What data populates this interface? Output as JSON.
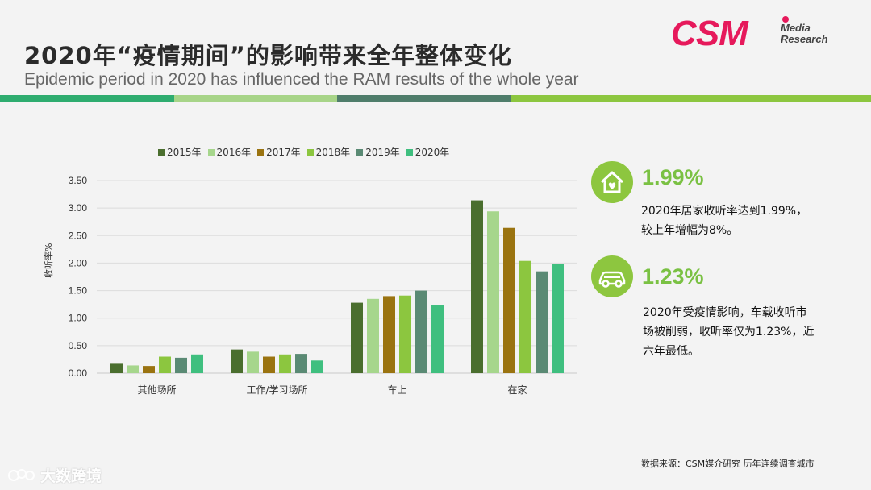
{
  "title": "2020年“疫情期间”的影响带来全年整体变化",
  "subtitle": "Epidemic period in 2020 has influenced the RAM results of the whole year",
  "logo": {
    "main": "CSM",
    "sub1": "Media",
    "sub2": "Research"
  },
  "colors": {
    "band": [
      "#2eac6f",
      "#a7d488",
      "#4f7d6b",
      "#8cc63f"
    ],
    "series": [
      "#4a6e2e",
      "#a6d68c",
      "#9a7310",
      "#8cc63f",
      "#5a8a74",
      "#3fbf7f"
    ],
    "accent": "#7ac143",
    "icon_bg": "#8dc63f"
  },
  "chart_data": {
    "type": "bar",
    "categories": [
      "其他场所",
      "工作/学习场所",
      "车上",
      "在家"
    ],
    "series": [
      {
        "name": "2015年",
        "values": [
          0.17,
          0.43,
          1.28,
          3.14
        ]
      },
      {
        "name": "2016年",
        "values": [
          0.14,
          0.39,
          1.35,
          2.94
        ]
      },
      {
        "name": "2017年",
        "values": [
          0.13,
          0.3,
          1.4,
          2.64
        ]
      },
      {
        "name": "2018年",
        "values": [
          0.3,
          0.34,
          1.41,
          2.04
        ]
      },
      {
        "name": "2019年",
        "values": [
          0.28,
          0.35,
          1.5,
          1.85
        ]
      },
      {
        "name": "2020年",
        "values": [
          0.34,
          0.23,
          1.23,
          1.99
        ]
      }
    ],
    "ylabel": "收听率%",
    "ylim": [
      0,
      3.5
    ],
    "yticks": [
      "0.00",
      "0.50",
      "1.00",
      "1.50",
      "2.00",
      "2.50",
      "3.00",
      "3.50"
    ],
    "grid": true,
    "legend": "top"
  },
  "highlights": [
    {
      "icon": "house-heart-icon",
      "value": "1.99%",
      "line1": "2020年居家收听率达到1.99%，",
      "line2": "较上年增幅为8%。",
      "line3": ""
    },
    {
      "icon": "car-icon",
      "value": "1.23%",
      "line1": "2020年受疫情影响，车载收听市",
      "line2": "场被削弱，收听率仅为1.23%，近",
      "line3": "六年最低。"
    }
  ],
  "source": "数据来源：CSM媒介研究  历年连续调查城市",
  "watermark": "大数跨境"
}
